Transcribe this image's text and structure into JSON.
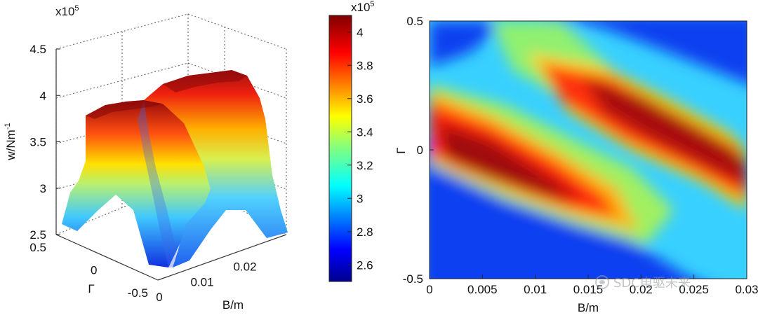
{
  "chart_data": [
    {
      "type": "surface",
      "zlabel": "w/Nm",
      "zlabel_sup": "-1",
      "xlabel": "B/m",
      "ylabel": "Γ",
      "scale_base": "x10",
      "scale_exp": "5",
      "z_ticks": [
        "2.5",
        "3",
        "3.5",
        "4",
        "4.5"
      ],
      "x_ticks": [
        "0",
        "0.01",
        "0.02"
      ],
      "y_ticks": [
        "0.5",
        "0",
        "-0.5"
      ],
      "xlim": [
        0,
        0.03
      ],
      "ylim": [
        -0.5,
        0.5
      ],
      "zlim": [
        2.5,
        4.5
      ],
      "grid": true
    },
    {
      "type": "colorbar",
      "scale_base": "x10",
      "scale_exp": "5",
      "ticks": [
        "2.6",
        "2.8",
        "3",
        "3.2",
        "3.4",
        "3.6",
        "3.8",
        "4"
      ],
      "range": [
        2.5,
        4.1
      ]
    },
    {
      "type": "heatmap",
      "xlabel": "B/m",
      "ylabel": "Γ",
      "x_ticks": [
        "0",
        "0.005",
        "0.01",
        "0.015",
        "0.02",
        "0.025",
        "0.03"
      ],
      "y_ticks": [
        "0.5",
        "0",
        "-0.5"
      ],
      "xlim": [
        0,
        0.03
      ],
      "ylim": [
        -0.5,
        0.5
      ]
    }
  ],
  "watermark": {
    "text": "SDC电驱未来",
    "icon": "wechat-icon"
  }
}
